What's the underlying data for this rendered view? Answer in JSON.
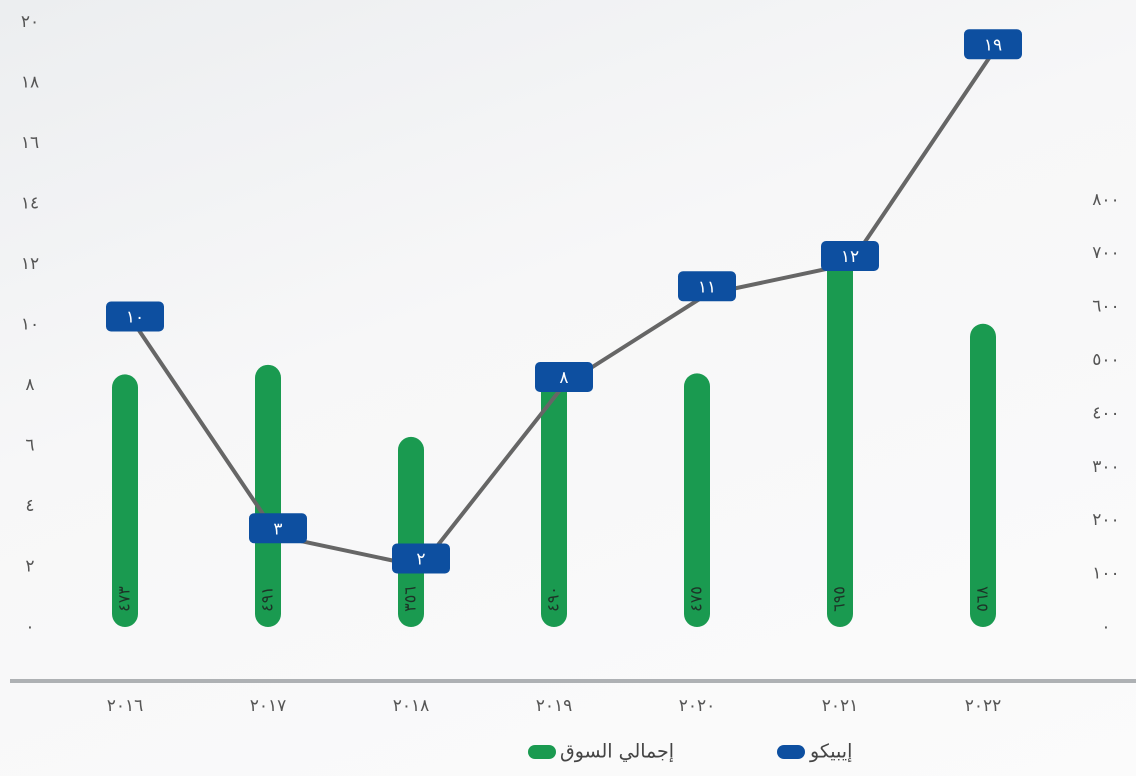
{
  "chart_data": {
    "type": "bar",
    "categories": [
      "٢٠١٦",
      "٢٠١٧",
      "٢٠١٨",
      "٢٠١٩",
      "٢٠٢٠",
      "٢٠٢١",
      "٢٠٢٢"
    ],
    "series": [
      {
        "name": "إجمالي السوق",
        "type": "bar",
        "axis": "y2",
        "color": "#1a9a50",
        "values": [
          473,
          491,
          356,
          490,
          475,
          695,
          568
        ],
        "value_labels": [
          "٤٧٣",
          "٤٩١",
          "٣٥٦",
          "٤٩٠",
          "٤٧٥",
          "٦٩٥",
          "٥٦٨"
        ]
      },
      {
        "name": "إيبيكو",
        "type": "line",
        "color": "#0d4fa0",
        "values": [
          10,
          3,
          2,
          8,
          11,
          12,
          19
        ],
        "value_labels": [
          "١٠",
          "٣",
          "٢",
          "٨",
          "١١",
          "١٢",
          "١٩"
        ]
      }
    ],
    "ylim": [
      0,
      20
    ],
    "yticks": [
      {
        "value": 0,
        "label": "٠"
      },
      {
        "value": 2,
        "label": "٢"
      },
      {
        "value": 4,
        "label": "٤"
      },
      {
        "value": 6,
        "label": "٦"
      },
      {
        "value": 8,
        "label": "٨"
      },
      {
        "value": 10,
        "label": "١٠"
      },
      {
        "value": 12,
        "label": "١٢"
      },
      {
        "value": 14,
        "label": "١٤"
      },
      {
        "value": 16,
        "label": "١٦"
      },
      {
        "value": 18,
        "label": "١٨"
      },
      {
        "value": 20,
        "label": "٢٠"
      }
    ],
    "y2lim": [
      0,
      1133
    ],
    "y2ticks": [
      {
        "value": 0,
        "label": "٠"
      },
      {
        "value": 100,
        "label": "١٠٠"
      },
      {
        "value": 200,
        "label": "٢٠٠"
      },
      {
        "value": 300,
        "label": "٣٠٠"
      },
      {
        "value": 400,
        "label": "٤٠٠"
      },
      {
        "value": 500,
        "label": "٥٠٠"
      },
      {
        "value": 600,
        "label": "٦٠٠"
      },
      {
        "value": 700,
        "label": "٧٠٠"
      },
      {
        "value": 800,
        "label": "٨٠٠"
      }
    ],
    "grid": false,
    "legend": "bottom"
  }
}
